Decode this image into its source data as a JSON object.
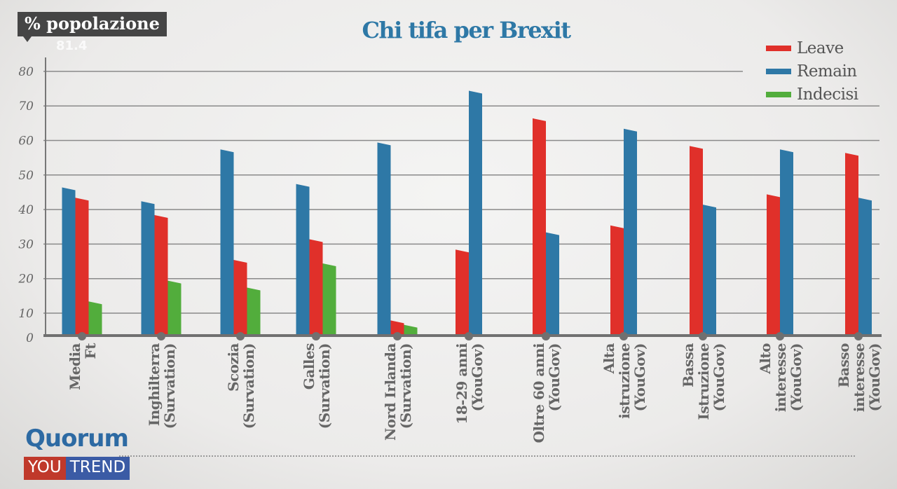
{
  "header": {
    "badge": "% popolazione",
    "ghost_value": "81.4"
  },
  "logo": {
    "line1": "Quorum",
    "you": "YOU",
    "trend": "TREND"
  },
  "chart_data": {
    "type": "bar",
    "title": "Chi tifa per Brexit",
    "ylabel": "% popolazione",
    "ylim": [
      0,
      80
    ],
    "yticks": [
      "0",
      "10",
      "20",
      "30",
      "40",
      "50",
      "60",
      "70",
      "80"
    ],
    "grid": true,
    "legend_position": "top-right",
    "categories": [
      [
        "Media",
        "Ft"
      ],
      [
        "Inghilterra",
        "(Survation)"
      ],
      [
        "Scozia",
        "(Survation)"
      ],
      [
        "Galles",
        "(Survation)"
      ],
      [
        "Nord Irlanda",
        "(Survation)"
      ],
      [
        "18-29 anni",
        "(YouGov)"
      ],
      [
        "Oltre 60 anni",
        "(YouGov)"
      ],
      [
        "Alta",
        "istruzione",
        "(YouGov)"
      ],
      [
        "Bassa",
        "Istruzione",
        "(YouGov)"
      ],
      [
        "Alto",
        "interesse",
        "(YouGov)"
      ],
      [
        "Basso",
        "interesse",
        "(YouGov)"
      ]
    ],
    "series": [
      {
        "name": "Leave",
        "color": "#e0302a",
        "values": [
          43,
          38,
          25,
          31,
          6,
          28,
          66,
          35,
          58,
          44,
          56
        ]
      },
      {
        "name": "Remain",
        "color": "#2e78a6",
        "values": [
          46,
          42,
          57,
          47,
          59,
          74,
          33,
          63,
          41,
          57,
          43
        ]
      },
      {
        "name": "Indecisi",
        "color": "#52ad3c",
        "values": [
          13,
          19,
          17,
          24,
          4,
          null,
          null,
          null,
          null,
          null,
          null
        ]
      }
    ]
  }
}
